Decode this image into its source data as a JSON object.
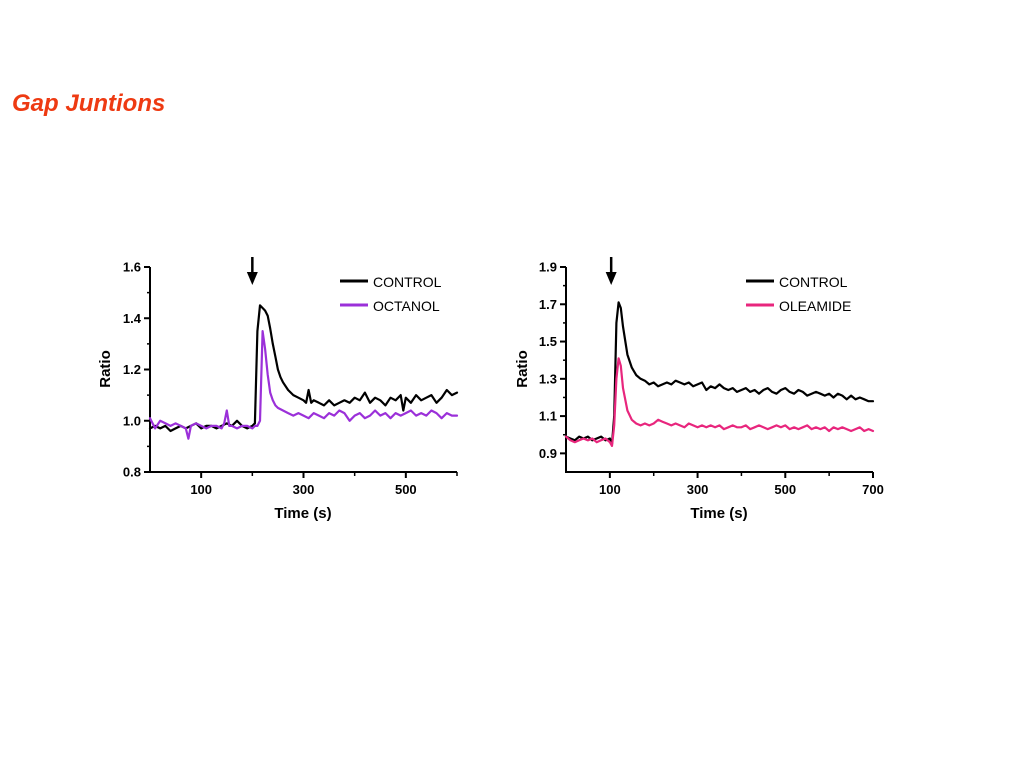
{
  "page": {
    "title": "Gap Juntions"
  },
  "chart_data": [
    {
      "type": "line",
      "xlabel": "Time (s)",
      "ylabel": "Ratio",
      "xlim": [
        0,
        600
      ],
      "ylim": [
        0.8,
        1.6
      ],
      "xticks": [
        100,
        300,
        500
      ],
      "yticks": [
        0.8,
        1.0,
        1.2,
        1.4,
        1.6
      ],
      "ytick_labels": [
        "0.8",
        "1.0",
        "1.2",
        "1.4",
        "1.6"
      ],
      "legend_position": "top-right",
      "annotation": {
        "type": "arrow-down",
        "x": 200
      },
      "series": [
        {
          "name": "CONTROL",
          "color": "#000000",
          "x": [
            0,
            10,
            20,
            30,
            40,
            50,
            60,
            70,
            80,
            90,
            100,
            110,
            120,
            130,
            140,
            150,
            160,
            170,
            180,
            190,
            200,
            205,
            210,
            215,
            220,
            225,
            230,
            235,
            240,
            245,
            250,
            255,
            260,
            270,
            280,
            290,
            300,
            305,
            310,
            315,
            320,
            330,
            340,
            350,
            360,
            370,
            380,
            390,
            400,
            410,
            420,
            430,
            440,
            450,
            460,
            470,
            480,
            490,
            495,
            500,
            510,
            520,
            530,
            540,
            550,
            560,
            570,
            580,
            590,
            600
          ],
          "y": [
            0.97,
            0.98,
            0.97,
            0.98,
            0.96,
            0.97,
            0.98,
            0.97,
            0.98,
            0.99,
            0.97,
            0.98,
            0.98,
            0.97,
            0.98,
            0.99,
            0.98,
            1.0,
            0.98,
            0.97,
            0.98,
            0.99,
            1.35,
            1.45,
            1.44,
            1.43,
            1.41,
            1.36,
            1.3,
            1.25,
            1.2,
            1.17,
            1.15,
            1.12,
            1.1,
            1.09,
            1.08,
            1.07,
            1.12,
            1.07,
            1.08,
            1.07,
            1.06,
            1.08,
            1.06,
            1.07,
            1.08,
            1.07,
            1.09,
            1.08,
            1.11,
            1.07,
            1.09,
            1.08,
            1.06,
            1.09,
            1.08,
            1.1,
            1.04,
            1.09,
            1.07,
            1.1,
            1.08,
            1.09,
            1.1,
            1.07,
            1.09,
            1.12,
            1.1,
            1.11
          ]
        },
        {
          "name": "OCTANOL",
          "color": "#9b30d9",
          "x": [
            0,
            10,
            20,
            30,
            40,
            50,
            60,
            70,
            75,
            80,
            90,
            100,
            110,
            120,
            130,
            140,
            145,
            150,
            155,
            160,
            170,
            180,
            190,
            200,
            205,
            210,
            215,
            220,
            225,
            230,
            235,
            240,
            245,
            250,
            260,
            270,
            280,
            290,
            300,
            310,
            320,
            330,
            340,
            350,
            360,
            370,
            380,
            390,
            400,
            410,
            420,
            430,
            440,
            450,
            460,
            470,
            480,
            490,
            500,
            510,
            520,
            530,
            540,
            550,
            560,
            570,
            580,
            590,
            600
          ],
          "y": [
            1.01,
            0.97,
            1.0,
            0.99,
            0.98,
            0.99,
            0.98,
            0.97,
            0.93,
            0.98,
            0.99,
            0.98,
            0.97,
            0.98,
            0.98,
            0.97,
            0.99,
            1.04,
            0.98,
            0.98,
            0.97,
            0.98,
            0.98,
            0.97,
            0.98,
            0.98,
            1.0,
            1.35,
            1.28,
            1.18,
            1.11,
            1.08,
            1.06,
            1.05,
            1.04,
            1.03,
            1.02,
            1.03,
            1.02,
            1.01,
            1.03,
            1.02,
            1.01,
            1.03,
            1.02,
            1.04,
            1.03,
            1.0,
            1.02,
            1.03,
            1.01,
            1.02,
            1.04,
            1.02,
            1.03,
            1.01,
            1.03,
            1.02,
            1.03,
            1.04,
            1.02,
            1.03,
            1.02,
            1.04,
            1.03,
            1.01,
            1.03,
            1.02,
            1.02
          ]
        }
      ]
    },
    {
      "type": "line",
      "xlabel": "Time (s)",
      "ylabel": "Ratio",
      "xlim": [
        0,
        700
      ],
      "ylim": [
        0.8,
        1.9
      ],
      "xticks": [
        100,
        300,
        500,
        700
      ],
      "yticks": [
        0.9,
        1.1,
        1.3,
        1.5,
        1.7,
        1.9
      ],
      "ytick_labels": [
        "0.9",
        "1.1",
        "1.3",
        "1.5",
        "1.7",
        "1.9"
      ],
      "legend_position": "top-right",
      "annotation": {
        "type": "arrow-down",
        "x": 103
      },
      "series": [
        {
          "name": "CONTROL",
          "color": "#000000",
          "x": [
            0,
            10,
            20,
            30,
            40,
            50,
            60,
            70,
            80,
            90,
            100,
            105,
            110,
            115,
            120,
            125,
            130,
            140,
            150,
            160,
            170,
            180,
            190,
            200,
            210,
            220,
            230,
            240,
            250,
            260,
            270,
            280,
            290,
            300,
            310,
            320,
            330,
            340,
            350,
            360,
            370,
            380,
            390,
            400,
            410,
            420,
            430,
            440,
            450,
            460,
            470,
            480,
            490,
            500,
            510,
            520,
            530,
            540,
            550,
            560,
            570,
            580,
            590,
            600,
            610,
            620,
            630,
            640,
            650,
            660,
            670,
            680,
            690,
            700
          ],
          "y": [
            0.99,
            0.98,
            0.97,
            0.99,
            0.98,
            0.99,
            0.97,
            0.98,
            0.99,
            0.97,
            0.98,
            0.95,
            1.1,
            1.6,
            1.71,
            1.68,
            1.58,
            1.43,
            1.36,
            1.32,
            1.3,
            1.29,
            1.27,
            1.28,
            1.26,
            1.27,
            1.28,
            1.27,
            1.29,
            1.28,
            1.27,
            1.28,
            1.26,
            1.27,
            1.28,
            1.24,
            1.26,
            1.25,
            1.27,
            1.25,
            1.24,
            1.25,
            1.23,
            1.24,
            1.25,
            1.23,
            1.24,
            1.22,
            1.24,
            1.25,
            1.23,
            1.22,
            1.24,
            1.25,
            1.23,
            1.22,
            1.24,
            1.23,
            1.21,
            1.22,
            1.23,
            1.22,
            1.21,
            1.22,
            1.2,
            1.22,
            1.21,
            1.19,
            1.21,
            1.19,
            1.2,
            1.19,
            1.18,
            1.18
          ]
        },
        {
          "name": "OLEAMIDE",
          "color": "#e8267d",
          "x": [
            0,
            10,
            20,
            30,
            40,
            50,
            60,
            70,
            80,
            90,
            100,
            105,
            110,
            115,
            120,
            125,
            130,
            140,
            150,
            160,
            170,
            180,
            190,
            200,
            210,
            220,
            230,
            240,
            250,
            260,
            270,
            280,
            290,
            300,
            310,
            320,
            330,
            340,
            350,
            360,
            370,
            380,
            390,
            400,
            410,
            420,
            430,
            440,
            450,
            460,
            470,
            480,
            490,
            500,
            510,
            520,
            530,
            540,
            550,
            560,
            570,
            580,
            590,
            600,
            610,
            620,
            630,
            640,
            650,
            660,
            670,
            680,
            690,
            700
          ],
          "y": [
            0.99,
            0.97,
            0.96,
            0.97,
            0.98,
            0.97,
            0.98,
            0.96,
            0.97,
            0.98,
            0.96,
            0.94,
            1.05,
            1.3,
            1.41,
            1.37,
            1.25,
            1.13,
            1.08,
            1.06,
            1.05,
            1.06,
            1.05,
            1.06,
            1.08,
            1.07,
            1.06,
            1.05,
            1.06,
            1.05,
            1.04,
            1.06,
            1.05,
            1.04,
            1.05,
            1.04,
            1.05,
            1.04,
            1.05,
            1.03,
            1.04,
            1.05,
            1.04,
            1.04,
            1.05,
            1.03,
            1.04,
            1.05,
            1.04,
            1.03,
            1.04,
            1.05,
            1.04,
            1.05,
            1.03,
            1.04,
            1.03,
            1.04,
            1.05,
            1.03,
            1.04,
            1.03,
            1.04,
            1.02,
            1.04,
            1.03,
            1.04,
            1.03,
            1.02,
            1.03,
            1.04,
            1.02,
            1.03,
            1.02
          ]
        }
      ]
    }
  ]
}
